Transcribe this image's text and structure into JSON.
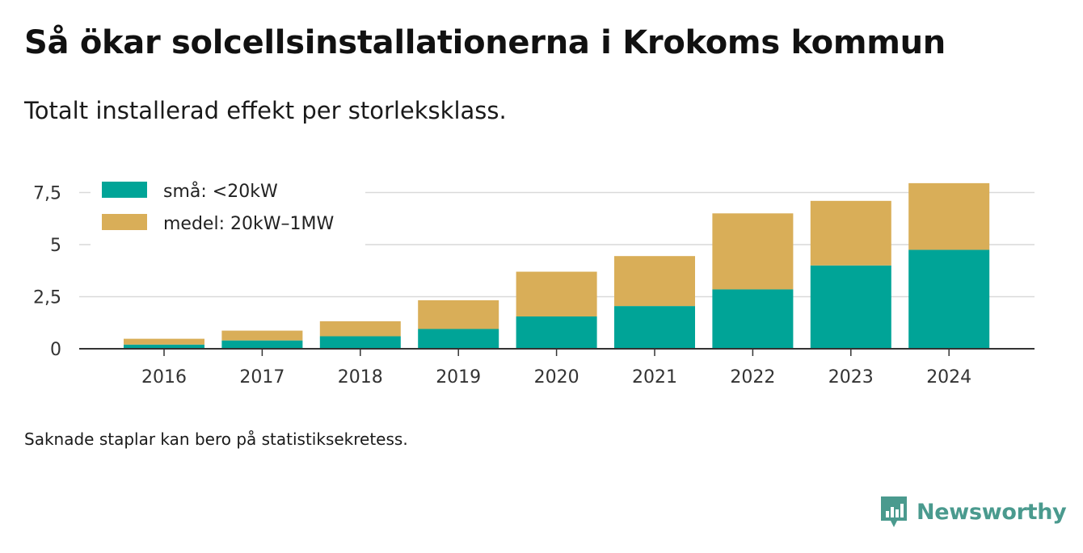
{
  "header": {
    "title": "Så ökar solcellsinstallationerna i Krokoms kommun",
    "subtitle": "Totalt installerad effekt per storleksklass."
  },
  "footnote": "Saknade staplar kan bero på statistiksekretess.",
  "brand": {
    "name": "Newsworthy",
    "color": "#4a9a8e",
    "icon": "newsworthy-logo-icon"
  },
  "chart_data": {
    "type": "bar",
    "stacked": true,
    "categories": [
      "2016",
      "2017",
      "2018",
      "2019",
      "2020",
      "2021",
      "2022",
      "2023",
      "2024"
    ],
    "series": [
      {
        "name": "små: <20kW",
        "color": "#00a497",
        "values": [
          0.2,
          0.4,
          0.6,
          0.95,
          1.55,
          2.05,
          2.85,
          4.0,
          4.75
        ]
      },
      {
        "name": "medel: 20kW–1MW",
        "color": "#d9ae58",
        "values": [
          0.28,
          0.47,
          0.72,
          1.38,
          2.15,
          2.4,
          3.65,
          3.1,
          3.2
        ]
      }
    ],
    "yticks": [
      0,
      2.5,
      5,
      7.5
    ],
    "ytick_labels": [
      "0",
      "2,5",
      "5",
      "7,5"
    ],
    "ylim": [
      0,
      8.2
    ],
    "grid": true,
    "legend_position": "top-left"
  }
}
